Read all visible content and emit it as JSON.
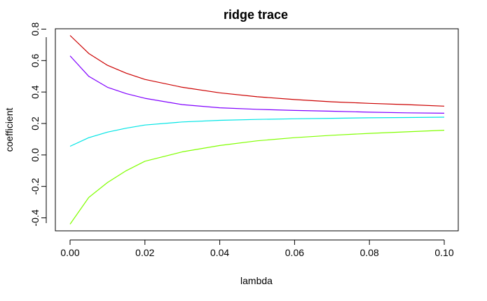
{
  "chart_data": {
    "type": "line",
    "title": "ridge trace",
    "xlabel": "lambda",
    "ylabel": "coefficient",
    "xlim": [
      0.0,
      0.1
    ],
    "ylim": [
      -0.48,
      0.8
    ],
    "x_ticks": [
      "0.00",
      "0.02",
      "0.04",
      "0.06",
      "0.08",
      "0.10"
    ],
    "y_ticks": [
      "-0.4",
      "-0.2",
      "0.0",
      "0.2",
      "0.4",
      "0.6",
      "0.8"
    ],
    "grid": false,
    "legend": "none",
    "x": [
      0.0,
      0.005,
      0.01,
      0.015,
      0.02,
      0.03,
      0.04,
      0.05,
      0.06,
      0.07,
      0.08,
      0.09,
      0.1
    ],
    "series": [
      {
        "color": "#cc0000",
        "values": [
          0.76,
          0.645,
          0.57,
          0.52,
          0.48,
          0.43,
          0.395,
          0.37,
          0.352,
          0.338,
          0.328,
          0.32,
          0.31
        ]
      },
      {
        "color": "#8000ff",
        "values": [
          0.63,
          0.5,
          0.43,
          0.39,
          0.36,
          0.32,
          0.3,
          0.29,
          0.283,
          0.278,
          0.272,
          0.268,
          0.265
        ]
      },
      {
        "color": "#00e5e5",
        "values": [
          0.055,
          0.11,
          0.145,
          0.17,
          0.19,
          0.21,
          0.22,
          0.226,
          0.23,
          0.233,
          0.236,
          0.238,
          0.24
        ]
      },
      {
        "color": "#80ff00",
        "values": [
          -0.44,
          -0.27,
          -0.175,
          -0.1,
          -0.04,
          0.02,
          0.06,
          0.09,
          0.11,
          0.125,
          0.137,
          0.147,
          0.157
        ]
      }
    ]
  }
}
